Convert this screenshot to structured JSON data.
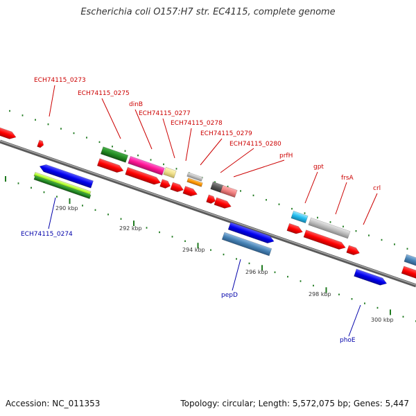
{
  "title": "Escherichia coli O157:H7 str. EC4115, complete genome",
  "footer": {
    "accession": "Accession: NC_011353",
    "summary": "Topology: circular; Length: 5,572,075 bp; Genes: 5,447"
  },
  "colors": {
    "backbone": "#7a7a7a",
    "tick": "#1f7a1f",
    "top_label": "#cc0000",
    "bottom_label": "#0000aa"
  },
  "scale_labels": [
    "290 kbp",
    "292 kbp",
    "294 kbp",
    "296 kbp",
    "298 kbp",
    "300 kbp"
  ],
  "top_labels": [
    "ECH74115_0273",
    "ECH74115_0275",
    "dinB",
    "ECH74115_0277",
    "ECH74115_0278",
    "ECH74115_0279",
    "ECH74115_0280",
    "prfH",
    "gpt",
    "frsA",
    "crl"
  ],
  "bottom_labels": [
    "ECH74115_0274",
    "pepD",
    "phoE"
  ]
}
